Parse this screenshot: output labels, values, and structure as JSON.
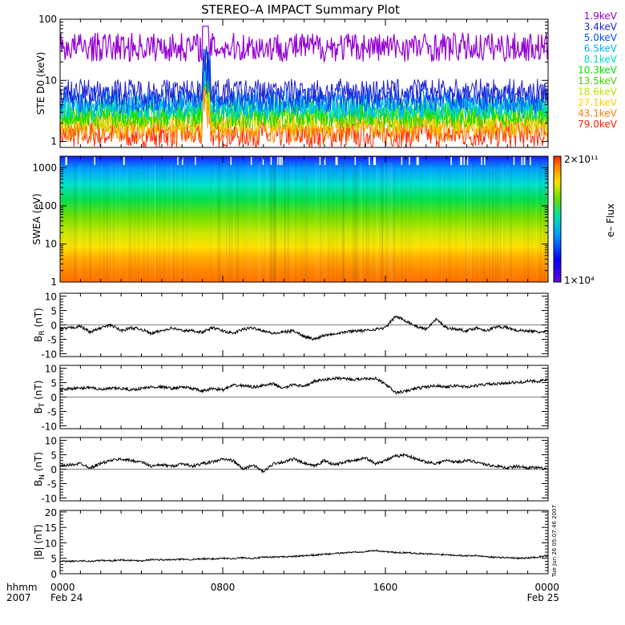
{
  "title": "STEREO–A IMPACT Summary Plot",
  "timestamp": "Tue Jun 26 05:07:46 2007",
  "xaxis": {
    "label_top": "hhmm",
    "label_bottom": "2007",
    "ticks": [
      "0000",
      "0800",
      "1600",
      "0000"
    ],
    "dates": [
      "Feb 24",
      "",
      "",
      "Feb 25"
    ]
  },
  "colors": {
    "trace": "#000000",
    "frame": "#000000"
  },
  "chart_data": [
    {
      "type": "line",
      "ylabel": "STE D0 (keV)",
      "yscale": "log",
      "ylim": [
        0.8,
        100
      ],
      "yticks": [
        "1",
        "10",
        "100"
      ],
      "x_range_hours": [
        0,
        24
      ],
      "legend_position": "right",
      "series": [
        {
          "name": "1.9keV",
          "color": "#9400d3",
          "mean": 35
        },
        {
          "name": "3.4keV",
          "color": "#2222cc",
          "mean": 6.5
        },
        {
          "name": "5.0keV",
          "color": "#0050ff",
          "mean": 4.8
        },
        {
          "name": "6.5keV",
          "color": "#00b0ff",
          "mean": 4.0
        },
        {
          "name": "8.1keV",
          "color": "#00e0c0",
          "mean": 3.6
        },
        {
          "name": "10.3keV",
          "color": "#00e000",
          "mean": 3.1
        },
        {
          "name": "13.5keV",
          "color": "#40d000",
          "mean": 2.7
        },
        {
          "name": "18.6keV",
          "color": "#c0e000",
          "mean": 2.3
        },
        {
          "name": "27.1keV",
          "color": "#ffd000",
          "mean": 2.0
        },
        {
          "name": "43.1keV",
          "color": "#ff8000",
          "mean": 1.6
        },
        {
          "name": "79.0keV",
          "color": "#ff2000",
          "mean": 1.3
        }
      ]
    },
    {
      "type": "heatmap",
      "ylabel": "SWEA (eV)",
      "yscale": "log",
      "ylim": [
        1,
        2000
      ],
      "yticks": [
        "1",
        "10",
        "100",
        "1000"
      ],
      "colorbar": {
        "label": "e– Flux",
        "max": "2×10¹¹",
        "min": "1×10⁴"
      }
    },
    {
      "type": "line",
      "ylabel": "B_R (nT)",
      "ylabel_main": "B",
      "ylabel_sub": "R",
      "ylabel_unit": "(nT)",
      "ylim": [
        -11,
        11
      ],
      "yticks": [
        -10,
        -5,
        0,
        5,
        10
      ],
      "x": [
        0,
        0.5,
        1,
        1.5,
        2,
        2.5,
        3,
        3.5,
        4,
        4.5,
        5,
        5.5,
        6,
        6.5,
        7,
        7.5,
        8,
        8.5,
        9,
        9.5,
        10,
        10.5,
        11,
        11.5,
        12,
        12.5,
        13,
        13.5,
        14,
        14.5,
        15,
        15.5,
        16,
        16.5,
        17,
        17.5,
        18,
        18.5,
        19,
        19.5,
        20,
        20.5,
        21,
        21.5,
        22,
        22.5,
        23,
        23.5,
        24
      ],
      "y": [
        -1.5,
        -1,
        -0.5,
        -2.5,
        -1,
        0,
        -2,
        -1,
        -1.5,
        -3,
        -2,
        -1,
        -2,
        -2,
        -2.5,
        -1,
        -2,
        -3,
        -1.5,
        -1,
        -2,
        -3,
        -2.5,
        -2,
        -4,
        -5,
        -3.5,
        -3,
        -2.5,
        -2,
        -2,
        -1.5,
        -1,
        3,
        1.5,
        -0.5,
        -1.5,
        2,
        -1,
        -1.5,
        -2,
        -1,
        -2,
        -0.5,
        -1,
        -2,
        -2,
        -2.5,
        -2.5
      ]
    },
    {
      "type": "line",
      "ylabel": "B_T (nT)",
      "ylabel_main": "B",
      "ylabel_sub": "T",
      "ylabel_unit": "(nT)",
      "ylim": [
        -11,
        11
      ],
      "yticks": [
        -10,
        -5,
        0,
        5,
        10
      ],
      "x": [
        0,
        0.5,
        1,
        1.5,
        2,
        2.5,
        3,
        3.5,
        4,
        4.5,
        5,
        5.5,
        6,
        6.5,
        7,
        7.5,
        8,
        8.5,
        9,
        9.5,
        10,
        10.5,
        11,
        11.5,
        12,
        12.5,
        13,
        13.5,
        14,
        14.5,
        15,
        15.5,
        16,
        16.5,
        17,
        17.5,
        18,
        18.5,
        19,
        19.5,
        20,
        20.5,
        21,
        21.5,
        22,
        22.5,
        23,
        23.5,
        24
      ],
      "y": [
        2.5,
        3,
        3,
        3.5,
        2.5,
        3,
        3,
        2.5,
        3,
        3.5,
        3.5,
        3,
        3.5,
        3,
        2,
        3,
        2.5,
        4,
        4,
        3.5,
        4,
        4.5,
        3,
        4.5,
        3.5,
        5.5,
        6,
        6.5,
        6.5,
        6,
        6.5,
        6.5,
        4.5,
        1.5,
        2,
        3,
        3.5,
        4,
        3.5,
        4,
        3.5,
        4,
        4.5,
        4.5,
        5,
        5,
        5.5,
        5.5,
        6
      ]
    },
    {
      "type": "line",
      "ylabel": "B_N (nT)",
      "ylabel_main": "B",
      "ylabel_sub": "N",
      "ylabel_unit": "(nT)",
      "ylim": [
        -11,
        11
      ],
      "yticks": [
        -10,
        -5,
        0,
        5,
        10
      ],
      "x": [
        0,
        0.5,
        1,
        1.5,
        2,
        2.5,
        3,
        3.5,
        4,
        4.5,
        5,
        5.5,
        6,
        6.5,
        7,
        7.5,
        8,
        8.5,
        9,
        9.5,
        10,
        10.5,
        11,
        11.5,
        12,
        12.5,
        13,
        13.5,
        14,
        14.5,
        15,
        15.5,
        16,
        16.5,
        17,
        17.5,
        18,
        18.5,
        19,
        19.5,
        20,
        20.5,
        21,
        21.5,
        22,
        22.5,
        23,
        23.5,
        24
      ],
      "y": [
        1,
        1.5,
        2,
        0.5,
        2,
        3,
        3.5,
        3,
        2.5,
        1,
        1.5,
        1,
        2,
        1,
        2,
        2.5,
        3.5,
        3,
        0,
        1.5,
        -1,
        2,
        2.5,
        3.5,
        2,
        1,
        3,
        1.5,
        2.5,
        3,
        4,
        2,
        3,
        4.5,
        5,
        3.5,
        2.5,
        2,
        3,
        2.5,
        3,
        2.5,
        1.5,
        1,
        0.5,
        1,
        0.5,
        0.5,
        0
      ]
    },
    {
      "type": "line",
      "ylabel": "|B| (nT)",
      "ylim": [
        0,
        20.5
      ],
      "yticks": [
        0,
        5,
        10,
        15,
        20
      ],
      "x": [
        0,
        0.5,
        1,
        1.5,
        2,
        2.5,
        3,
        3.5,
        4,
        4.5,
        5,
        5.5,
        6,
        6.5,
        7,
        7.5,
        8,
        8.5,
        9,
        9.5,
        10,
        10.5,
        11,
        11.5,
        12,
        12.5,
        13,
        13.5,
        14,
        14.5,
        15,
        15.5,
        16,
        16.5,
        17,
        17.5,
        18,
        18.5,
        19,
        19.5,
        20,
        20.5,
        21,
        21.5,
        22,
        22.5,
        23,
        23.5,
        24
      ],
      "y": [
        4,
        4,
        4.2,
        4,
        4.3,
        4.2,
        4.5,
        4.3,
        4.2,
        4.6,
        4.5,
        4.5,
        4.7,
        4.6,
        4.8,
        4.8,
        5,
        4.9,
        5.2,
        5,
        5.3,
        5.4,
        5.5,
        5.6,
        5.8,
        6,
        6.3,
        6.5,
        6.8,
        7,
        7.2,
        7.5,
        7.2,
        6.8,
        6.9,
        6.6,
        6.4,
        6.3,
        6.2,
        6,
        5.8,
        5.9,
        5.5,
        5.3,
        5.2,
        5,
        5.1,
        5.4,
        5.8
      ]
    }
  ]
}
